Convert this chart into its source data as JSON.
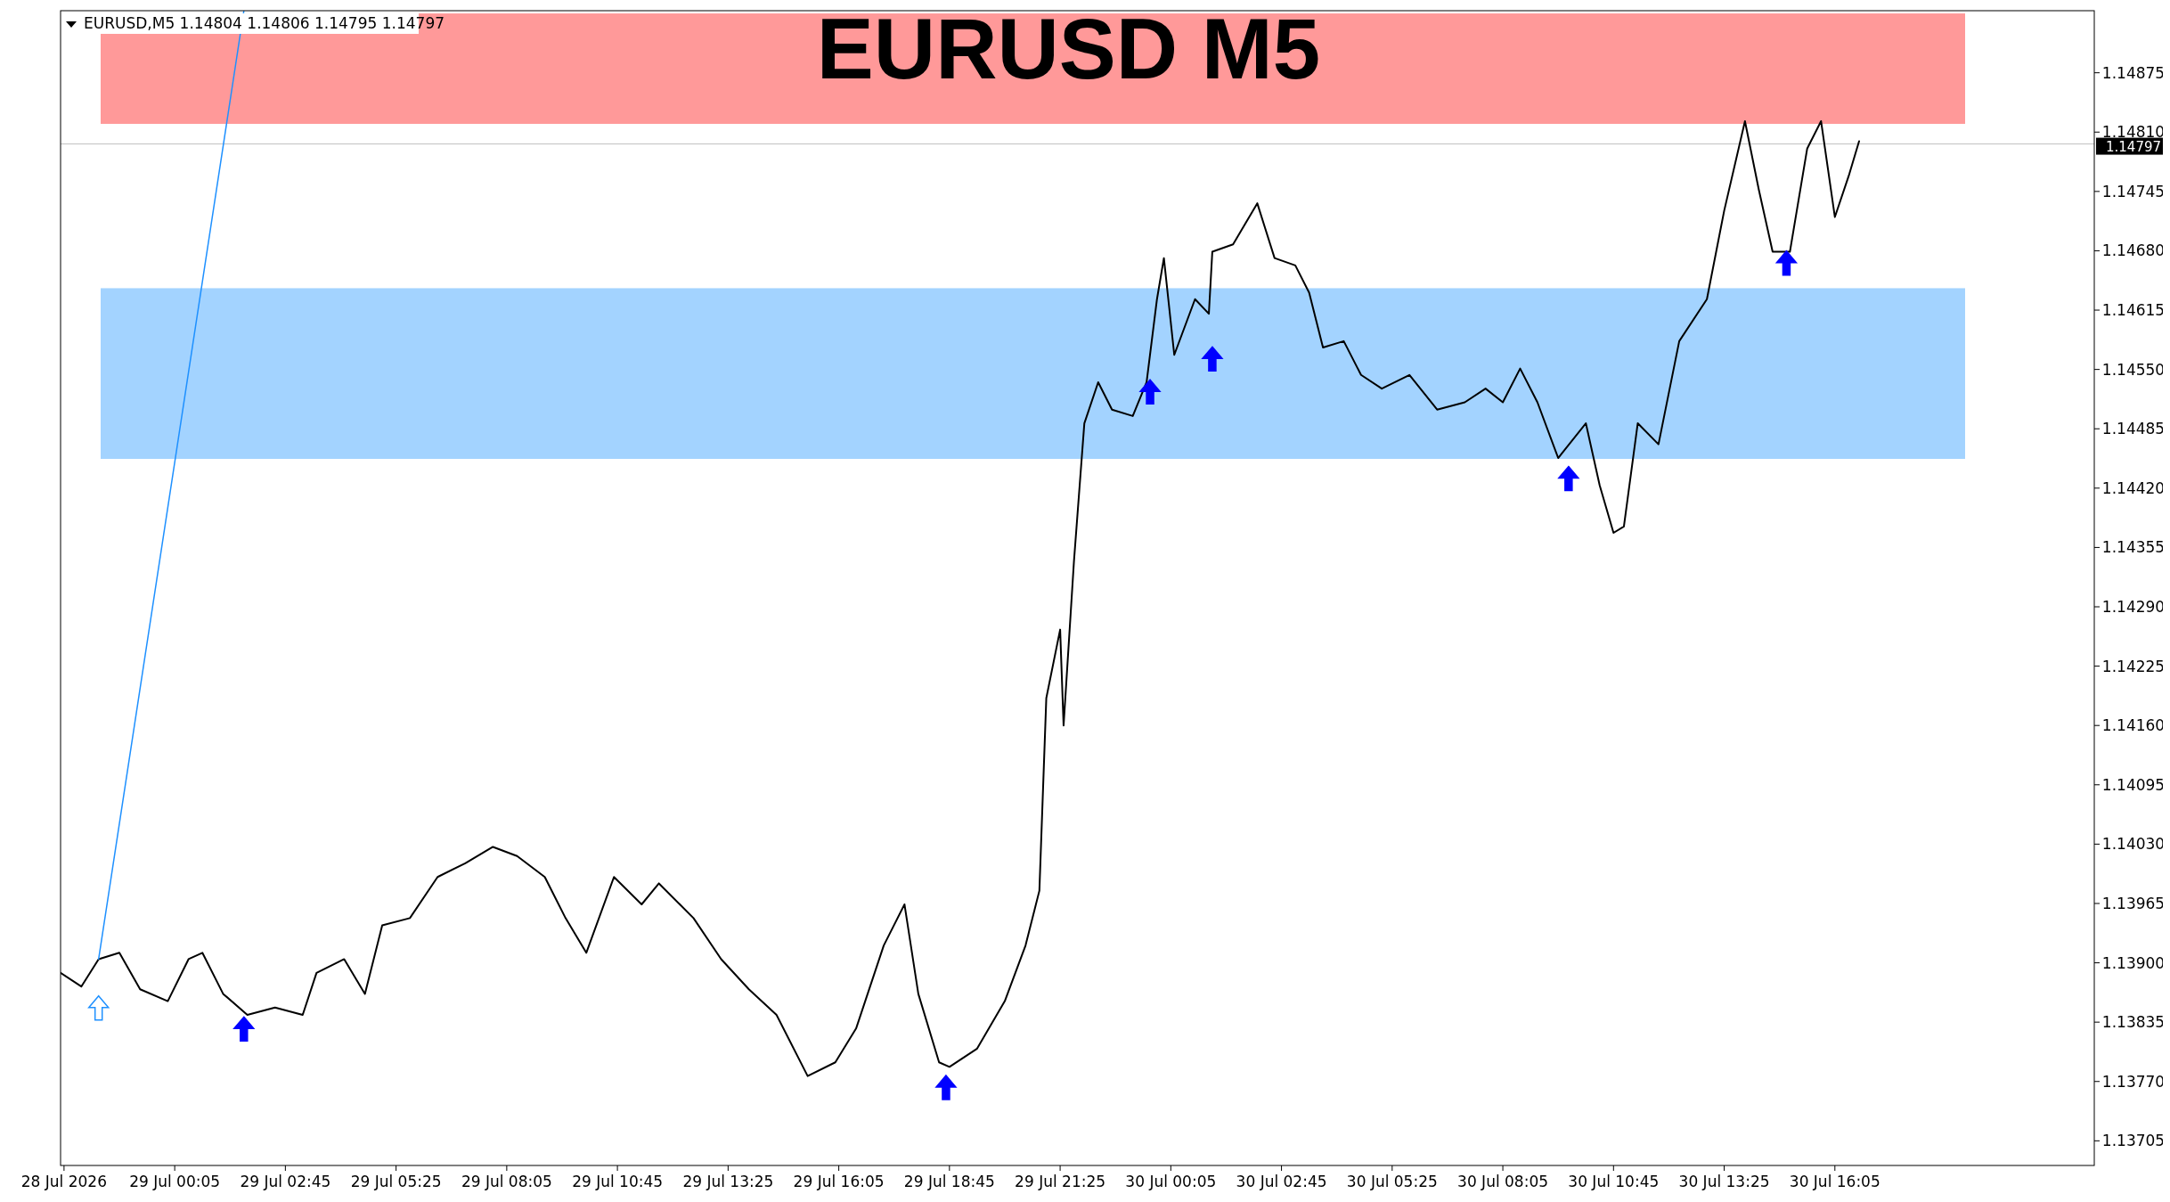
{
  "chart_data": {
    "type": "line",
    "title": "EURUSD M5",
    "subtitle": "EURUSD,M5  1.14804 1.14806 1.14795 1.14797",
    "xlim": [
      "2026-07-28T21:20",
      "2026-07-30T22:20"
    ],
    "ylim": [
      1.13678,
      1.14943
    ],
    "xticks": [
      {
        "value": "2026-07-28T21:25",
        "label": "28 Jul 2026"
      },
      {
        "value": "2026-07-29T00:05",
        "label": "29 Jul 00:05"
      },
      {
        "value": "2026-07-29T02:45",
        "label": "29 Jul 02:45"
      },
      {
        "value": "2026-07-29T05:25",
        "label": "29 Jul 05:25"
      },
      {
        "value": "2026-07-29T08:05",
        "label": "29 Jul 08:05"
      },
      {
        "value": "2026-07-29T10:45",
        "label": "29 Jul 10:45"
      },
      {
        "value": "2026-07-29T13:25",
        "label": "29 Jul 13:25"
      },
      {
        "value": "2026-07-29T16:05",
        "label": "29 Jul 16:05"
      },
      {
        "value": "2026-07-29T18:45",
        "label": "29 Jul 18:45"
      },
      {
        "value": "2026-07-29T21:25",
        "label": "29 Jul 21:25"
      },
      {
        "value": "2026-07-30T00:05",
        "label": "30 Jul 00:05"
      },
      {
        "value": "2026-07-30T02:45",
        "label": "30 Jul 02:45"
      },
      {
        "value": "2026-07-30T05:25",
        "label": "30 Jul 05:25"
      },
      {
        "value": "2026-07-30T08:05",
        "label": "30 Jul 08:05"
      },
      {
        "value": "2026-07-30T10:45",
        "label": "30 Jul 10:45"
      },
      {
        "value": "2026-07-30T13:25",
        "label": "30 Jul 13:25"
      },
      {
        "value": "2026-07-30T16:05",
        "label": "30 Jul 16:05"
      }
    ],
    "yticks": [
      1.13705,
      {
        "value": 1.1377,
        "label": "1.13770"
      },
      1.13835,
      {
        "value": 1.139,
        "label": "1.13900"
      },
      1.13965,
      {
        "value": 1.1403,
        "label": "1.14030"
      },
      1.14095,
      {
        "value": 1.1416,
        "label": "1.14160"
      },
      1.14225,
      {
        "value": 1.1429,
        "label": "1.14290"
      },
      1.14355,
      {
        "value": 1.1442,
        "label": "1.14420"
      },
      1.14485,
      {
        "value": 1.1455,
        "label": "1.14550"
      },
      1.14615,
      {
        "value": 1.1468,
        "label": "1.14680"
      },
      1.14745,
      {
        "value": 1.1481,
        "label": "1.14810"
      },
      1.14875
    ],
    "grid": false,
    "bands": [
      {
        "axis": "y",
        "from": 1.14819,
        "to": 1.1494,
        "color": "#ff9999"
      },
      {
        "axis": "y",
        "from": 1.14452,
        "to": 1.14639,
        "color": "#a3d3ff"
      }
    ],
    "ref_lines": [
      {
        "axis": "y",
        "value": 1.14797,
        "label": "1.14797",
        "color": "#c0c0c0"
      }
    ],
    "series": [
      {
        "color": "#000000",
        "x": [
          "2026-07-28T21:20",
          "2026-07-28T21:50",
          "2026-07-28T22:15",
          "2026-07-28T22:45",
          "2026-07-28T23:15",
          "2026-07-28T23:55",
          "2026-07-29T00:25",
          "2026-07-29T00:45",
          "2026-07-29T01:15",
          "2026-07-29T01:50",
          "2026-07-29T02:30",
          "2026-07-29T03:10",
          "2026-07-29T03:30",
          "2026-07-29T04:10",
          "2026-07-29T04:40",
          "2026-07-29T05:05",
          "2026-07-29T05:45",
          "2026-07-29T06:25",
          "2026-07-29T07:05",
          "2026-07-29T07:45",
          "2026-07-29T08:20",
          "2026-07-29T09:00",
          "2026-07-29T09:30",
          "2026-07-29T10:00",
          "2026-07-29T10:40",
          "2026-07-29T11:20",
          "2026-07-29T11:45",
          "2026-07-29T12:35",
          "2026-07-29T13:15",
          "2026-07-29T13:55",
          "2026-07-29T14:35",
          "2026-07-29T15:20",
          "2026-07-29T16:00",
          "2026-07-29T16:30",
          "2026-07-29T17:10",
          "2026-07-29T17:40",
          "2026-07-29T18:00",
          "2026-07-29T18:30",
          "2026-07-29T18:45",
          "2026-07-29T19:25",
          "2026-07-29T20:05",
          "2026-07-29T20:35",
          "2026-07-29T20:55",
          "2026-07-29T21:05",
          "2026-07-29T21:25",
          "2026-07-29T21:30",
          "2026-07-29T21:45",
          "2026-07-29T22:00",
          "2026-07-29T22:20",
          "2026-07-29T22:40",
          "2026-07-29T23:10",
          "2026-07-29T23:30",
          "2026-07-29T23:45",
          "2026-07-29T23:55",
          "2026-07-30T00:10",
          "2026-07-30T00:40",
          "2026-07-30T01:00",
          "2026-07-30T01:05",
          "2026-07-30T01:35",
          "2026-07-30T02:10",
          "2026-07-30T02:35",
          "2026-07-30T03:05",
          "2026-07-30T03:25",
          "2026-07-30T03:45",
          "2026-07-30T04:15",
          "2026-07-30T04:40",
          "2026-07-30T05:10",
          "2026-07-30T05:50",
          "2026-07-30T06:30",
          "2026-07-30T07:10",
          "2026-07-30T07:40",
          "2026-07-30T08:05",
          "2026-07-30T08:30",
          "2026-07-30T08:55",
          "2026-07-30T09:25",
          "2026-07-30T10:05",
          "2026-07-30T10:25",
          "2026-07-30T10:45",
          "2026-07-30T11:00",
          "2026-07-30T11:20",
          "2026-07-30T11:50",
          "2026-07-30T12:20",
          "2026-07-30T13:00",
          "2026-07-30T13:25",
          "2026-07-30T13:55",
          "2026-07-30T14:15",
          "2026-07-30T14:35",
          "2026-07-30T15:00",
          "2026-07-30T15:25",
          "2026-07-30T15:45",
          "2026-07-30T16:05",
          "2026-07-30T16:25",
          "2026-07-30T16:40"
        ],
        "values": [
          1.13889,
          1.13874,
          1.13904,
          1.13911,
          1.13871,
          1.13858,
          1.13904,
          1.13911,
          1.13866,
          1.13843,
          1.13851,
          1.13843,
          1.13889,
          1.13904,
          1.13866,
          1.13941,
          1.13949,
          1.13994,
          1.14009,
          1.14027,
          1.14017,
          1.13994,
          1.13949,
          1.13911,
          1.13994,
          1.13964,
          1.13987,
          1.13949,
          1.13904,
          1.13871,
          1.13843,
          1.13776,
          1.13791,
          1.13828,
          1.13919,
          1.13964,
          1.13866,
          1.13791,
          1.13786,
          1.13806,
          1.13858,
          1.13919,
          1.13979,
          1.1419,
          1.14265,
          1.1416,
          1.1434,
          1.14491,
          1.14536,
          1.14506,
          1.14499,
          1.14536,
          1.14627,
          1.14672,
          1.14566,
          1.14627,
          1.14611,
          1.14679,
          1.14687,
          1.14732,
          1.14672,
          1.14664,
          1.14634,
          1.14574,
          1.14581,
          1.14544,
          1.14529,
          1.14544,
          1.14506,
          1.14514,
          1.14529,
          1.14514,
          1.14551,
          1.14514,
          1.14453,
          1.14491,
          1.14423,
          1.14371,
          1.14378,
          1.14491,
          1.14468,
          1.14581,
          1.14627,
          1.14724,
          1.14822,
          1.14747,
          1.14679,
          1.14679,
          1.14792,
          1.14822,
          1.14717,
          1.14762,
          1.148
        ]
      },
      {
        "type": "line",
        "color": "#1e90ff",
        "x": [
          "2026-07-28T22:15",
          "2026-07-29T01:45"
        ],
        "values": [
          1.13904,
          1.14943
        ]
      },
      {
        "type": "scatter",
        "marker": "triangle",
        "color": "#1e90ff",
        "x": [
          "2026-07-28T22:15"
        ],
        "values": [
          1.13851
        ]
      },
      {
        "type": "scatter",
        "marker": "triangle",
        "color": "#0000ff",
        "x": [
          "2026-07-29T01:45",
          "2026-07-29T18:40",
          "2026-07-29T23:35",
          "2026-07-30T01:05",
          "2026-07-30T09:40",
          "2026-07-30T14:55"
        ],
        "values": [
          1.13828,
          1.13764,
          1.14526,
          1.14562,
          1.14431,
          1.14667
        ]
      }
    ]
  }
}
